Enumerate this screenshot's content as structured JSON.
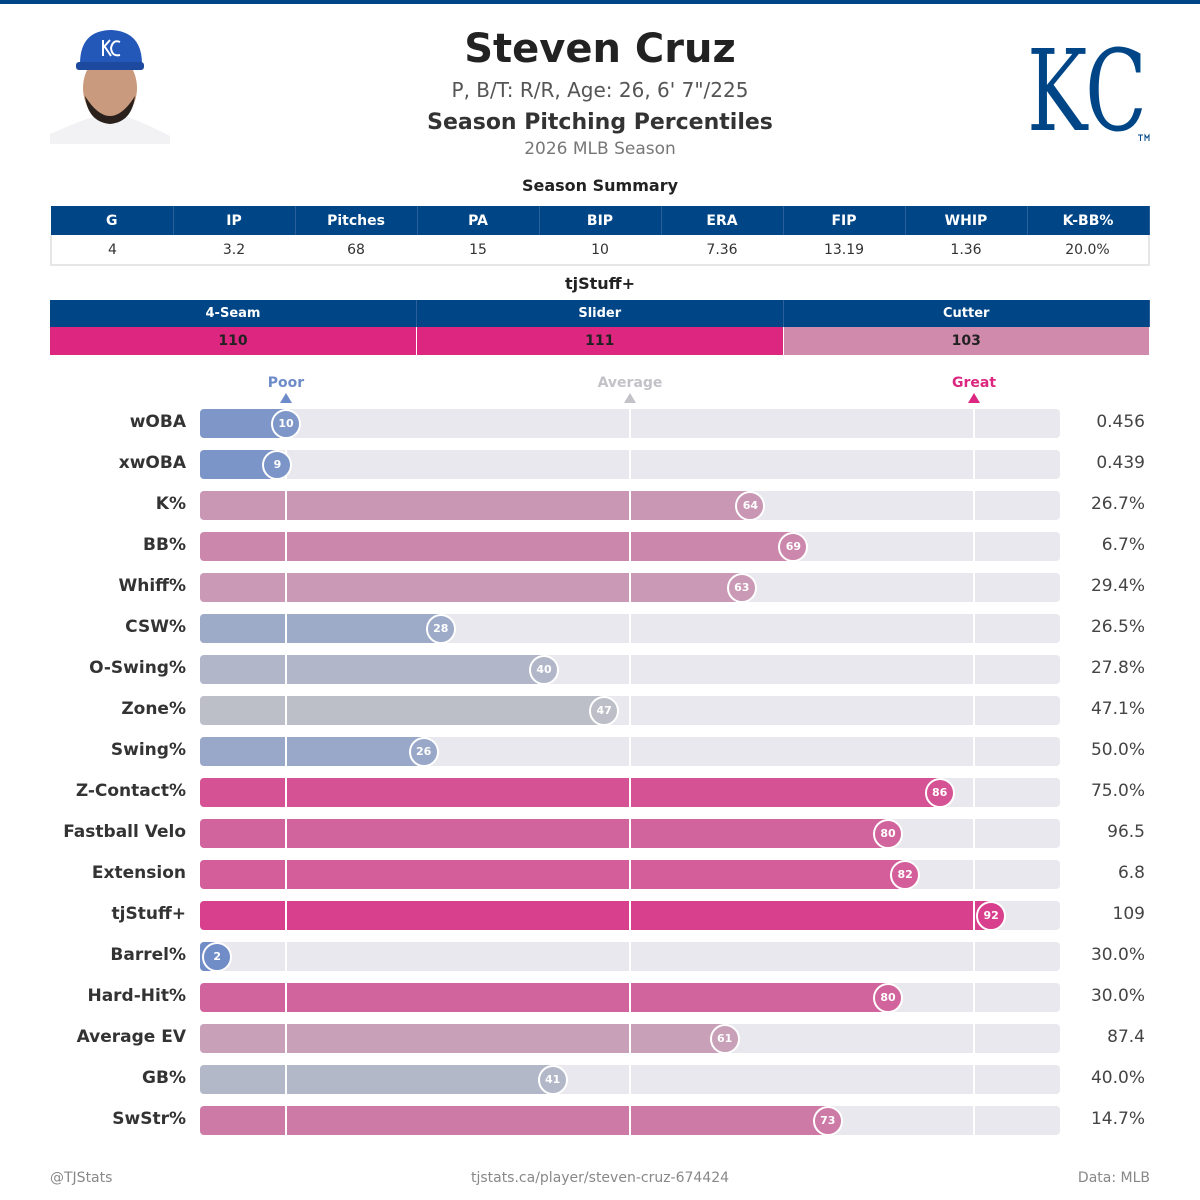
{
  "header": {
    "name": "Steven Cruz",
    "bio": "P, B/T: R/R, Age: 26, 6' 7\"/225",
    "subtitle": "Season Pitching Percentiles",
    "season": "2026 MLB Season",
    "logo_text": "KC"
  },
  "summary": {
    "title": "Season Summary",
    "columns": [
      "G",
      "IP",
      "Pitches",
      "PA",
      "BIP",
      "ERA",
      "FIP",
      "WHIP",
      "K-BB%"
    ],
    "values": [
      "4",
      "3.2",
      "68",
      "15",
      "10",
      "7.36",
      "13.19",
      "1.36",
      "20.0%"
    ]
  },
  "tjstuff": {
    "title": "tjStuff+",
    "columns": [
      "4-Seam",
      "Slider",
      "Cutter"
    ],
    "values": [
      "110",
      "111",
      "103"
    ],
    "colors": [
      "#dc2680",
      "#dc2680",
      "#cf8aac"
    ]
  },
  "scale": {
    "poor": "Poor",
    "average": "Average",
    "great": "Great",
    "poor_color": "#6d8bc8",
    "average_color": "#c2c2c8",
    "great_color": "#dc2680"
  },
  "chart_data": {
    "type": "bar",
    "orientation": "horizontal",
    "xlim": [
      0,
      100
    ],
    "markers": [
      10,
      50,
      90
    ],
    "categories": [
      "wOBA",
      "xwOBA",
      "K%",
      "BB%",
      "Whiff%",
      "CSW%",
      "O-Swing%",
      "Zone%",
      "Swing%",
      "Z-Contact%",
      "Fastball Velo",
      "Extension",
      "tjStuff+",
      "Barrel%",
      "Hard-Hit%",
      "Average EV",
      "GB%",
      "SwStr%"
    ],
    "percentiles": [
      10,
      9,
      64,
      69,
      63,
      28,
      40,
      47,
      26,
      86,
      80,
      82,
      92,
      2,
      80,
      61,
      41,
      73
    ],
    "stat_values": [
      "0.456",
      "0.439",
      "26.7%",
      "6.7%",
      "29.4%",
      "26.5%",
      "27.8%",
      "47.1%",
      "50.0%",
      "75.0%",
      "96.5",
      "6.8",
      "109",
      "30.0%",
      "30.0%",
      "87.4",
      "40.0%",
      "14.7%"
    ]
  },
  "footer": {
    "left": "@TJStats",
    "center": "tjstats.ca/player/steven-cruz-674424",
    "right": "Data: MLB"
  }
}
